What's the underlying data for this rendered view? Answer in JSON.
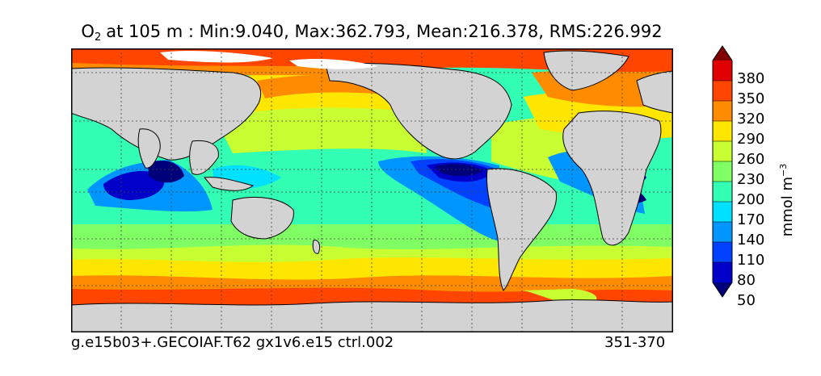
{
  "title": {
    "variable_main": "O",
    "variable_sub": "2",
    "text": "at 105 m : Min:9.040, Max:362.793, Mean:216.378, RMS:226.992"
  },
  "footer": {
    "case_name": "g.e15b03+.GECOIAF.T62 gx1v6.e15 ctrl.002",
    "years": "351-370"
  },
  "colorbar": {
    "units_main": "mmol m",
    "units_exp": "−3",
    "labels": [
      "380",
      "350",
      "320",
      "290",
      "260",
      "230",
      "200",
      "170",
      "140",
      "110",
      "80",
      "50"
    ],
    "colors": [
      "#800000",
      "#e00000",
      "#ff4500",
      "#ff8c00",
      "#ffe600",
      "#c8ff32",
      "#80ff64",
      "#32ffb4",
      "#00e1ff",
      "#0096ff",
      "#0040ff",
      "#0000c8",
      "#00007a"
    ],
    "extend": "both"
  },
  "map_style": {
    "land_color": "#d3d3d3",
    "ice_color": "#ffffff",
    "gridlines": "dashed"
  }
}
